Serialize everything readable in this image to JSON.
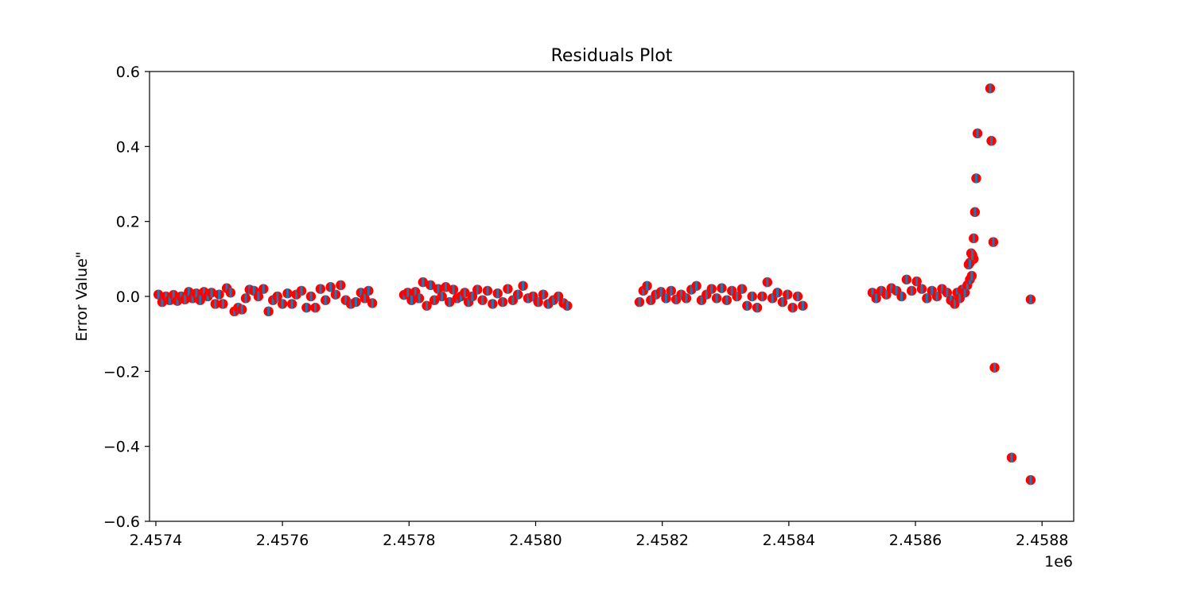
{
  "chart_data": {
    "type": "scatter",
    "title": "Residuals Plot",
    "xlabel": "",
    "ylabel": "Error Value\"",
    "x_offset_label": "1e6",
    "xlim": [
      2457390,
      2458850
    ],
    "ylim": [
      -0.6,
      0.6
    ],
    "x_ticks": [
      2457400,
      2457600,
      2457800,
      2458000,
      2458200,
      2458400,
      2458600,
      2458800
    ],
    "x_tick_labels": [
      "2.4574",
      "2.4576",
      "2.4578",
      "2.4580",
      "2.4582",
      "2.4584",
      "2.4586",
      "2.4588"
    ],
    "y_ticks": [
      -0.6,
      -0.4,
      -0.2,
      0.0,
      0.2,
      0.4,
      0.6
    ],
    "y_tick_labels": [
      "−0.6",
      "−0.4",
      "−0.2",
      "0.0",
      "0.2",
      "0.4",
      "0.6"
    ],
    "grid": false,
    "colors": {
      "marker_fill": "#ff0000",
      "errorbar": "#1f77b4"
    },
    "series": [
      {
        "x": [
          2457404,
          2457410,
          2457416,
          2457422,
          2457428,
          2457434,
          2457440,
          2457446,
          2457452,
          2457458,
          2457464,
          2457470,
          2457476,
          2457482,
          2457488,
          2457494,
          2457500,
          2457506,
          2457512,
          2457518,
          2457524,
          2457530,
          2457536,
          2457542,
          2457548,
          2457555,
          2457562,
          2457570,
          2457578,
          2457585,
          2457592,
          2457600,
          2457608,
          2457615,
          2457622,
          2457630,
          2457638,
          2457645,
          2457652,
          2457660,
          2457668,
          2457676,
          2457684,
          2457692,
          2457700,
          2457708,
          2457716,
          2457724,
          2457730,
          2457736,
          2457742
        ],
        "y": [
          0.005,
          -0.015,
          0.0,
          -0.01,
          0.004,
          -0.012,
          0.0,
          -0.008,
          0.012,
          -0.005,
          0.008,
          -0.01,
          0.012,
          0.0,
          0.01,
          -0.02,
          0.005,
          -0.02,
          0.022,
          0.01,
          -0.04,
          -0.03,
          -0.035,
          -0.005,
          0.018,
          0.015,
          0.0,
          0.02,
          -0.04,
          -0.01,
          0.0,
          -0.02,
          0.008,
          -0.02,
          0.005,
          0.015,
          -0.03,
          0.0,
          -0.03,
          0.02,
          -0.01,
          0.025,
          0.005,
          0.03,
          -0.01,
          -0.02,
          -0.015,
          0.01,
          -0.005,
          0.015,
          -0.018
        ]
      },
      {
        "x": [
          2457792,
          2457798,
          2457804,
          2457810,
          2457816,
          2457822,
          2457828,
          2457834,
          2457840,
          2457846,
          2457852,
          2457858,
          2457864,
          2457870,
          2457876,
          2457882,
          2457888,
          2457894,
          2457900,
          2457908,
          2457916,
          2457924,
          2457932,
          2457940,
          2457948,
          2457956,
          2457964,
          2457972,
          2457980,
          2457988,
          2457996,
          2458004,
          2458012,
          2458020,
          2458028,
          2458036,
          2458044,
          2458050
        ],
        "y": [
          0.004,
          0.01,
          -0.01,
          0.012,
          -0.005,
          0.038,
          -0.025,
          0.03,
          -0.01,
          0.02,
          0.0,
          0.025,
          -0.015,
          0.018,
          -0.005,
          0.0,
          0.01,
          -0.015,
          0.0,
          0.018,
          -0.01,
          0.015,
          -0.02,
          0.008,
          -0.015,
          0.02,
          -0.01,
          0.005,
          0.028,
          -0.005,
          0.0,
          -0.015,
          0.005,
          -0.02,
          -0.01,
          0.0,
          -0.018,
          -0.025
        ]
      },
      {
        "x": [
          2458164,
          2458170,
          2458176,
          2458182,
          2458190,
          2458198,
          2458206,
          2458214,
          2458222,
          2458230,
          2458238,
          2458246,
          2458254,
          2458262,
          2458270,
          2458278,
          2458286,
          2458294,
          2458302,
          2458310,
          2458318,
          2458326,
          2458334,
          2458342,
          2458350,
          2458358,
          2458366,
          2458374,
          2458382,
          2458390,
          2458398,
          2458406,
          2458414,
          2458422
        ],
        "y": [
          -0.015,
          0.015,
          0.028,
          -0.01,
          0.005,
          0.012,
          -0.005,
          0.015,
          -0.008,
          0.005,
          -0.005,
          0.018,
          0.028,
          -0.01,
          0.005,
          0.02,
          -0.005,
          0.022,
          -0.01,
          0.015,
          0.0,
          0.02,
          -0.025,
          0.0,
          -0.03,
          0.0,
          0.038,
          -0.005,
          0.01,
          -0.015,
          0.005,
          -0.03,
          0.0,
          -0.025
        ]
      },
      {
        "x": [
          2458532,
          2458538,
          2458546,
          2458554,
          2458562,
          2458570,
          2458578,
          2458586,
          2458594,
          2458602,
          2458610,
          2458618,
          2458626,
          2458634,
          2458642,
          2458650,
          2458656,
          2458662,
          2458666,
          2458670,
          2458674,
          2458678,
          2458682,
          2458686,
          2458689,
          2458692
        ],
        "y": [
          0.01,
          -0.005,
          0.015,
          0.005,
          0.022,
          0.015,
          0.0,
          0.045,
          0.015,
          0.04,
          0.02,
          -0.005,
          0.015,
          0.0,
          0.02,
          0.01,
          -0.01,
          -0.02,
          0.01,
          -0.005,
          0.018,
          0.01,
          0.03,
          0.045,
          0.055,
          0.1
        ]
      },
      {
        "x": [
          2458684,
          2458686,
          2458688,
          2458690,
          2458692,
          2458694,
          2458696,
          2458698,
          2458718,
          2458720,
          2458723,
          2458725,
          2458752,
          2458782
        ],
        "y": [
          0.085,
          0.09,
          0.115,
          0.11,
          0.155,
          0.225,
          0.315,
          0.435,
          0.555,
          0.415,
          0.145,
          -0.19,
          -0.43,
          -0.49
        ]
      },
      {
        "x": [
          2458782
        ],
        "y": [
          -0.008
        ]
      }
    ]
  }
}
